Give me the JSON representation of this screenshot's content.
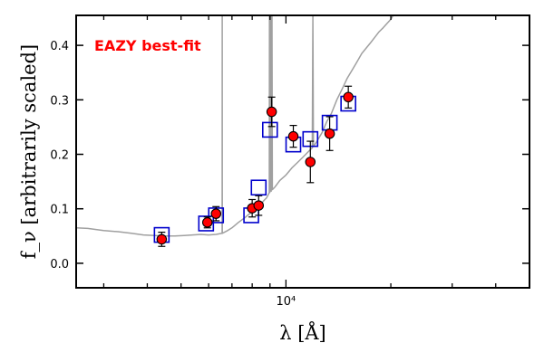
{
  "chart_data": {
    "type": "scatter",
    "title": "",
    "annotation": "EAZY best-fit",
    "annotation_color": "#ff0000",
    "xlabel": "λ [Å]",
    "ylabel": "f_ν [arbitrarily scaled]",
    "xscale": "log",
    "xlim": [
      2500,
      50000
    ],
    "ylim": [
      -0.045,
      0.455
    ],
    "x_ticks": [
      {
        "value": 10000,
        "label": "10⁴"
      }
    ],
    "y_ticks": [
      {
        "value": 0.0,
        "label": "0.0"
      },
      {
        "value": 0.1,
        "label": "0.1"
      },
      {
        "value": 0.2,
        "label": "0.2"
      },
      {
        "value": 0.3,
        "label": "0.3"
      },
      {
        "value": 0.4,
        "label": "0.4"
      }
    ],
    "grid": false,
    "colors": {
      "observed_face": "#ff0000",
      "observed_edge": "#000000",
      "model_box": "#0000cc",
      "template": "#a0a0a0"
    },
    "series": [
      {
        "kind": "observed_photometry",
        "points": [
          {
            "x": 4400,
            "y": 0.044,
            "err": 0.013
          },
          {
            "x": 5950,
            "y": 0.075,
            "err": 0.01
          },
          {
            "x": 6300,
            "y": 0.091,
            "err": 0.013
          },
          {
            "x": 8000,
            "y": 0.101,
            "err": 0.016
          },
          {
            "x": 8350,
            "y": 0.106,
            "err": 0.018
          },
          {
            "x": 9100,
            "y": 0.278,
            "err": 0.027
          },
          {
            "x": 10500,
            "y": 0.233,
            "err": 0.02
          },
          {
            "x": 11750,
            "y": 0.186,
            "err": 0.038
          },
          {
            "x": 13350,
            "y": 0.238,
            "err": 0.031
          },
          {
            "x": 15100,
            "y": 0.305,
            "err": 0.02
          }
        ]
      },
      {
        "kind": "template_fluxes",
        "points": [
          {
            "x": 4400,
            "y": 0.052
          },
          {
            "x": 5900,
            "y": 0.073
          },
          {
            "x": 6300,
            "y": 0.088
          },
          {
            "x": 7950,
            "y": 0.088
          },
          {
            "x": 8350,
            "y": 0.139
          },
          {
            "x": 9000,
            "y": 0.245
          },
          {
            "x": 10500,
            "y": 0.218
          },
          {
            "x": 11750,
            "y": 0.228
          },
          {
            "x": 13350,
            "y": 0.258
          },
          {
            "x": 15100,
            "y": 0.293
          }
        ]
      },
      {
        "kind": "template_spectrum",
        "points": [
          [
            2500,
            0.065
          ],
          [
            2700,
            0.064
          ],
          [
            3000,
            0.06
          ],
          [
            3300,
            0.058
          ],
          [
            3600,
            0.055
          ],
          [
            3900,
            0.052
          ],
          [
            4200,
            0.051
          ],
          [
            4500,
            0.05
          ],
          [
            4800,
            0.05
          ],
          [
            5100,
            0.051
          ],
          [
            5400,
            0.052
          ],
          [
            5700,
            0.053
          ],
          [
            6000,
            0.052
          ],
          [
            6300,
            0.053
          ],
          [
            6560,
            0.055
          ],
          [
            6564,
            0.455
          ],
          [
            6568,
            0.055
          ],
          [
            6800,
            0.06
          ],
          [
            7000,
            0.065
          ],
          [
            7300,
            0.075
          ],
          [
            7600,
            0.083
          ],
          [
            7900,
            0.092
          ],
          [
            8200,
            0.098
          ],
          [
            8500,
            0.11
          ],
          [
            8700,
            0.117
          ],
          [
            8800,
            0.12
          ],
          [
            8900,
            0.126
          ],
          [
            8960,
            0.13
          ],
          [
            8970,
            0.455
          ],
          [
            8990,
            0.13
          ],
          [
            9050,
            0.455
          ],
          [
            9070,
            0.132
          ],
          [
            9120,
            0.455
          ],
          [
            9140,
            0.135
          ],
          [
            9300,
            0.14
          ],
          [
            9600,
            0.152
          ],
          [
            10000,
            0.162
          ],
          [
            10400,
            0.175
          ],
          [
            10800,
            0.185
          ],
          [
            11200,
            0.195
          ],
          [
            11600,
            0.205
          ],
          [
            11900,
            0.212
          ],
          [
            11950,
            0.455
          ],
          [
            11990,
            0.214
          ],
          [
            12300,
            0.225
          ],
          [
            12700,
            0.24
          ],
          [
            13100,
            0.26
          ],
          [
            13500,
            0.275
          ],
          [
            14000,
            0.3
          ],
          [
            14500,
            0.32
          ],
          [
            15000,
            0.34
          ],
          [
            15500,
            0.355
          ],
          [
            16000,
            0.37
          ],
          [
            16500,
            0.385
          ],
          [
            17000,
            0.395
          ],
          [
            17500,
            0.405
          ],
          [
            18000,
            0.415
          ],
          [
            18500,
            0.425
          ],
          [
            19000,
            0.432
          ],
          [
            19500,
            0.44
          ],
          [
            20000,
            0.448
          ],
          [
            20300,
            0.455
          ]
        ]
      }
    ]
  }
}
